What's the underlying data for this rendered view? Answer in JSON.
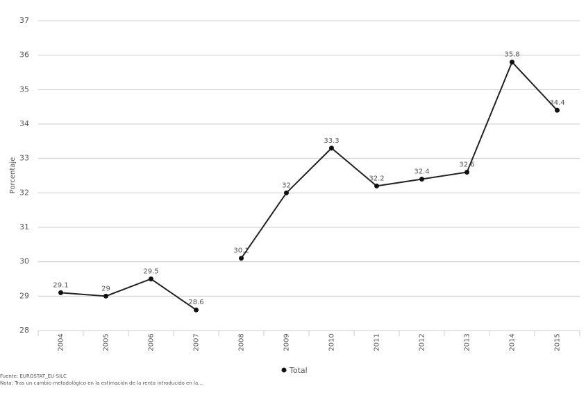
{
  "chart_data": {
    "type": "line",
    "y_label": "Porcentaje",
    "categories": [
      "2004",
      "2005",
      "2006",
      "2007",
      "2008",
      "2009",
      "2010",
      "2011",
      "2012",
      "2013",
      "2014",
      "2015"
    ],
    "series": [
      {
        "name": "Total",
        "color": "#222222",
        "values": [
          29.1,
          29,
          29.5,
          28.6,
          30.1,
          32,
          33.3,
          32.2,
          32.4,
          32.6,
          35.8,
          34.4
        ]
      }
    ],
    "line_break_after": [
      3
    ],
    "ylim": [
      28,
      37
    ],
    "yticks": [
      28,
      29,
      30,
      31,
      32,
      33,
      34,
      35,
      36,
      37
    ],
    "grid": true,
    "legend": "bottom",
    "source": "Fuente: EUROSTAT_EU-SILC",
    "note": "Nota: Tras un cambio metodológico en la estimación de la renta introducido en la..."
  }
}
